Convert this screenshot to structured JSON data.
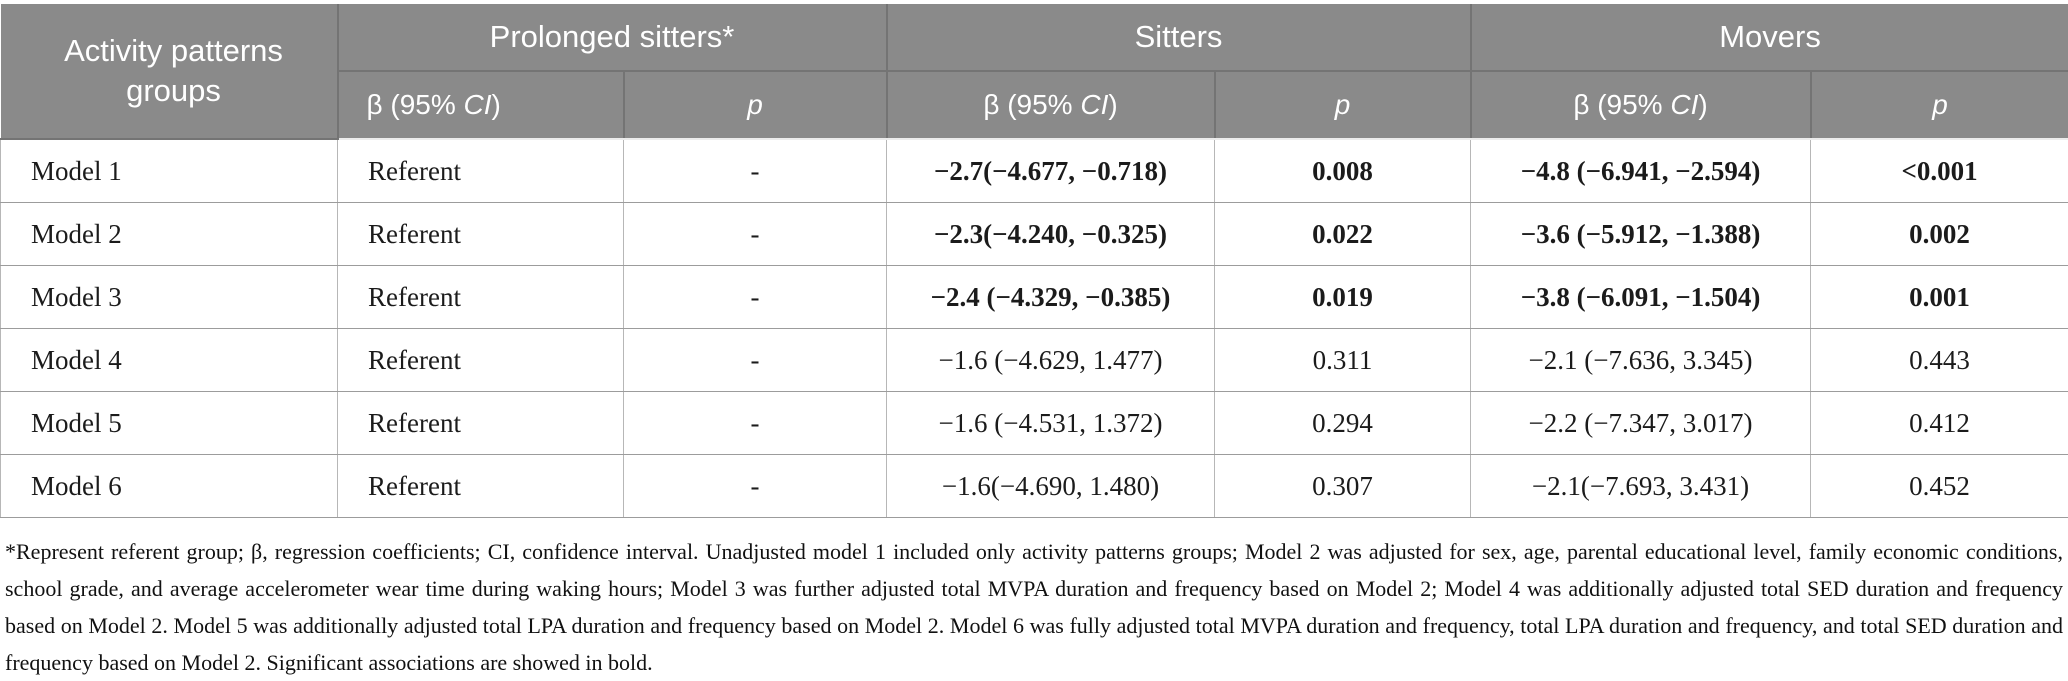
{
  "table": {
    "header": {
      "activity_label": "Activity patterns groups",
      "groups": [
        {
          "label": "Prolonged sitters*"
        },
        {
          "label": "Sitters"
        },
        {
          "label": "Movers"
        }
      ]
    },
    "subheader": {
      "beta_parts": [
        "β (95% ",
        "CI",
        ")"
      ],
      "p_label": "p"
    },
    "rows": [
      {
        "model": "Model 1",
        "prolonged_beta": "Referent",
        "prolonged_p": "-",
        "sitters_beta": "−2.7(−4.677, −0.718)",
        "sitters_p": "0.008",
        "movers_beta": "−4.8 (−6.941, −2.594)",
        "movers_p": "<0.001",
        "bold": true
      },
      {
        "model": "Model 2",
        "prolonged_beta": "Referent",
        "prolonged_p": "-",
        "sitters_beta": "−2.3(−4.240, −0.325)",
        "sitters_p": "0.022",
        "movers_beta": "−3.6 (−5.912, −1.388)",
        "movers_p": "0.002",
        "bold": true
      },
      {
        "model": "Model 3",
        "prolonged_beta": "Referent",
        "prolonged_p": "-",
        "sitters_beta": "−2.4 (−4.329, −0.385)",
        "sitters_p": "0.019",
        "movers_beta": "−3.8 (−6.091, −1.504)",
        "movers_p": "0.001",
        "bold": true
      },
      {
        "model": "Model 4",
        "prolonged_beta": "Referent",
        "prolonged_p": "-",
        "sitters_beta": "−1.6 (−4.629, 1.477)",
        "sitters_p": "0.311",
        "movers_beta": "−2.1 (−7.636, 3.345)",
        "movers_p": "0.443",
        "bold": false
      },
      {
        "model": "Model 5",
        "prolonged_beta": "Referent",
        "prolonged_p": "-",
        "sitters_beta": "−1.6 (−4.531, 1.372)",
        "sitters_p": "0.294",
        "movers_beta": "−2.2 (−7.347, 3.017)",
        "movers_p": "0.412",
        "bold": false
      },
      {
        "model": "Model 6",
        "prolonged_beta": "Referent",
        "prolonged_p": "-",
        "sitters_beta": "−1.6(−4.690, 1.480)",
        "sitters_p": "0.307",
        "movers_beta": "−2.1(−7.693, 3.431)",
        "movers_p": "0.452",
        "bold": false
      }
    ]
  },
  "footnote": "*Represent referent group; β, regression coefficients; CI, confidence interval. Unadjusted model 1 included only activity patterns groups; Model 2 was adjusted for sex, age, parental educational level, family economic conditions, school grade, and average accelerometer wear time during waking hours; Model 3 was further adjusted total MVPA duration and frequency based on Model 2; Model 4 was additionally adjusted total SED duration and frequency based on Model 2. Model 5 was additionally adjusted total LPA duration and frequency based on Model 2. Model 6 was fully adjusted total MVPA duration and frequency, total LPA duration and frequency, and total SED duration and frequency based on Model 2. Significant associations are showed in bold.",
  "colors": {
    "header_bg": "#8a8a8a",
    "header_text": "#ffffff",
    "header_border": "#747474",
    "body_text": "#1b1b1b",
    "border_vertical": "#b7b7b7",
    "border_horizontal": "#9c9c9c"
  }
}
